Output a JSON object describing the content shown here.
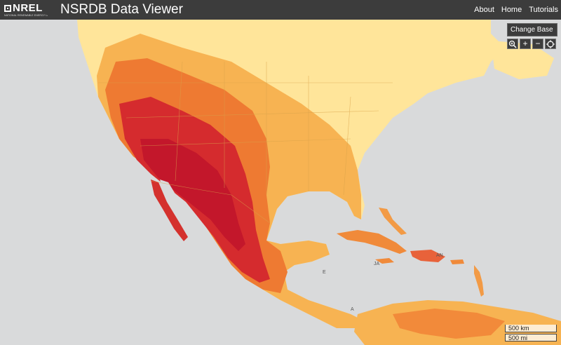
{
  "header": {
    "logo_text": "NREL",
    "logo_subtext": "NATIONAL RENEWABLE ENERGY LABORATORY",
    "title": "NSRDB Data Viewer",
    "nav": [
      {
        "label": "About"
      },
      {
        "label": "Home"
      },
      {
        "label": "Tutorials"
      }
    ]
  },
  "map_controls": {
    "change_base_label": "Change Base",
    "zoom_extent_icon": "magnify-icon",
    "zoom_in_label": "+",
    "zoom_out_label": "−",
    "locate_icon": "crosshair-icon"
  },
  "scale_bar": {
    "km_label": "500 km",
    "mi_label": "500 mi"
  },
  "map_labels": [
    "JA",
    "AN",
    "E",
    "A"
  ],
  "colors": {
    "header_bg": "#3c3c3c",
    "ocean": "#d9dadb",
    "irradiance_low": "#ffeb9e",
    "irradiance_mid": "#f5a142",
    "irradiance_high": "#c8192d"
  }
}
